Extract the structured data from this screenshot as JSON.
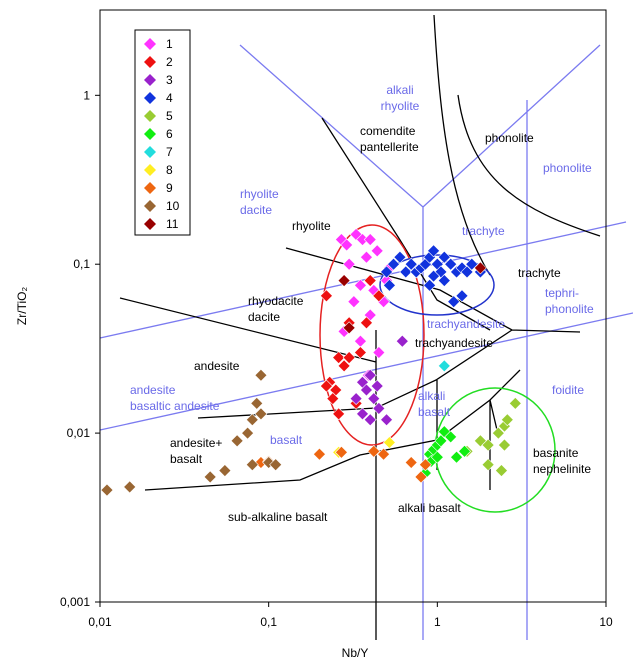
{
  "chart_data": {
    "type": "scatter",
    "x_label": "Nb/Y",
    "y_label": "Zr/TiO₂",
    "xscale": "log",
    "yscale": "log",
    "xlim": [
      0.01,
      10
    ],
    "ylim": [
      0.001,
      3.2
    ],
    "xticks": [
      {
        "value": 0.01,
        "label": "0,01"
      },
      {
        "value": 0.1,
        "label": "0,1"
      },
      1,
      10
    ],
    "yticks": [
      {
        "value": 0.001,
        "label": "0,001"
      },
      {
        "value": 0.01,
        "label": "0,01"
      },
      {
        "value": 0.1,
        "label": "0,1"
      },
      1
    ],
    "regions": [
      [
        "alkali",
        "rhyolite"
      ],
      [
        "rhyolite",
        "dacite"
      ],
      [
        "trachyte"
      ],
      [
        "phonolite"
      ],
      [
        "tephri-",
        "phonolite"
      ],
      [
        "trachyandesite"
      ],
      [
        "andesite",
        "basaltic andesite"
      ],
      [
        "alkali",
        "basalt"
      ],
      [
        "foidite"
      ],
      [
        "basalt"
      ],
      [
        "comendite",
        "pantellerite"
      ],
      [
        "phonolite"
      ],
      [
        "rhyolite"
      ],
      [
        "trachyte"
      ],
      [
        "rhyodacite",
        "dacite"
      ],
      [
        "trachyandesite"
      ],
      [
        "andesite"
      ],
      [
        "andesite+",
        "basalt"
      ],
      [
        "basanite",
        "nephelinite"
      ],
      [
        "sub-alkaline basalt"
      ],
      [
        "alkali basalt"
      ]
    ],
    "series": [
      {
        "name": "1",
        "color": "#ff33ff",
        "x": [
          0.27,
          0.29,
          0.33,
          0.36,
          0.4,
          0.38,
          0.44,
          0.3,
          0.35,
          0.42,
          0.5,
          0.32,
          0.4,
          0.28,
          0.35,
          0.45,
          0.3,
          0.39,
          0.48,
          0.52
        ],
        "y": [
          0.14,
          0.13,
          0.15,
          0.14,
          0.14,
          0.11,
          0.12,
          0.1,
          0.075,
          0.07,
          0.08,
          0.06,
          0.05,
          0.04,
          0.035,
          0.03,
          0.028,
          0.022,
          0.06,
          0.095
        ]
      },
      {
        "name": "2",
        "color": "#ee1111",
        "x": [
          0.22,
          0.3,
          0.26,
          0.28,
          0.3,
          0.23,
          0.25,
          0.33,
          0.24,
          0.35,
          0.38,
          0.4,
          0.22,
          0.26,
          0.45
        ],
        "y": [
          0.065,
          0.045,
          0.028,
          0.025,
          0.028,
          0.02,
          0.018,
          0.015,
          0.016,
          0.03,
          0.045,
          0.08,
          0.019,
          0.013,
          0.065
        ]
      },
      {
        "name": "3",
        "color": "#9922cc",
        "x": [
          0.36,
          0.4,
          0.38,
          0.42,
          0.45,
          0.36,
          0.33,
          0.5,
          0.4,
          0.62,
          0.44
        ],
        "y": [
          0.02,
          0.022,
          0.018,
          0.016,
          0.014,
          0.013,
          0.016,
          0.012,
          0.012,
          0.035,
          0.019
        ]
      },
      {
        "name": "4",
        "color": "#1133dd",
        "x": [
          0.5,
          0.55,
          0.6,
          0.65,
          0.7,
          0.75,
          0.8,
          0.85,
          0.9,
          0.95,
          1.0,
          1.05,
          1.1,
          1.2,
          1.3,
          1.4,
          1.5,
          1.6,
          1.1,
          1.25,
          1.4,
          0.9,
          0.52,
          1.8,
          0.95
        ],
        "y": [
          0.09,
          0.1,
          0.11,
          0.09,
          0.1,
          0.09,
          0.095,
          0.1,
          0.11,
          0.12,
          0.1,
          0.09,
          0.11,
          0.1,
          0.09,
          0.095,
          0.09,
          0.1,
          0.08,
          0.06,
          0.065,
          0.075,
          0.075,
          0.09,
          0.085
        ]
      },
      {
        "name": "5",
        "color": "#99cc33",
        "x": [
          1.8,
          2.0,
          2.3,
          2.5,
          2.6,
          2.5,
          2.4,
          2.9,
          1.5,
          2.0
        ],
        "y": [
          0.009,
          0.0085,
          0.01,
          0.011,
          0.012,
          0.0085,
          0.006,
          0.015,
          0.0078,
          0.0065
        ]
      },
      {
        "name": "6",
        "color": "#11ee11",
        "x": [
          0.85,
          0.9,
          0.95,
          1.0,
          1.05,
          1.1,
          1.2,
          1.3,
          1.45,
          0.92,
          1.0
        ],
        "y": [
          0.0058,
          0.0075,
          0.008,
          0.0085,
          0.009,
          0.0102,
          0.0095,
          0.0072,
          0.0078,
          0.0068,
          0.0072
        ]
      },
      {
        "name": "7",
        "color": "#22dddd",
        "x": [
          1.1
        ],
        "y": [
          0.025
        ]
      },
      {
        "name": "8",
        "color": "#ffee22",
        "x": [
          0.26,
          0.52
        ],
        "y": [
          0.0077,
          0.0088
        ]
      },
      {
        "name": "9",
        "color": "#ee6611",
        "x": [
          0.08,
          0.09,
          0.1,
          0.2,
          0.27,
          0.42,
          0.48,
          0.7,
          0.8,
          0.85
        ],
        "y": [
          0.0065,
          0.0067,
          0.0068,
          0.0075,
          0.0077,
          0.0078,
          0.0075,
          0.0067,
          0.0055,
          0.0065
        ]
      },
      {
        "name": "10",
        "color": "#996633",
        "x": [
          0.011,
          0.015,
          0.045,
          0.055,
          0.065,
          0.075,
          0.08,
          0.085,
          0.09,
          0.09,
          0.1,
          0.11,
          0.08
        ],
        "y": [
          0.0046,
          0.0048,
          0.0055,
          0.006,
          0.009,
          0.01,
          0.012,
          0.015,
          0.013,
          0.022,
          0.0067,
          0.0065,
          0.0065
        ]
      },
      {
        "name": "11",
        "color": "#990000",
        "x": [
          0.28,
          0.3,
          1.8
        ],
        "y": [
          0.08,
          0.042,
          0.095
        ]
      }
    ]
  }
}
